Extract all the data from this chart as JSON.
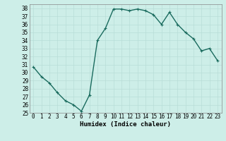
{
  "x": [
    0,
    1,
    2,
    3,
    4,
    5,
    6,
    7,
    8,
    9,
    10,
    11,
    12,
    13,
    14,
    15,
    16,
    17,
    18,
    19,
    20,
    21,
    22,
    23
  ],
  "y": [
    30.7,
    29.5,
    28.7,
    27.5,
    26.5,
    26.0,
    25.2,
    27.2,
    34.0,
    35.5,
    37.9,
    37.9,
    37.7,
    37.9,
    37.7,
    37.2,
    36.0,
    37.5,
    36.0,
    35.0,
    34.2,
    32.7,
    33.0,
    31.5
  ],
  "line_color": "#1a6b5e",
  "bg_color": "#cdeee8",
  "grid_color": "#b8ddd7",
  "xlabel": "Humidex (Indice chaleur)",
  "ylim": [
    25,
    38.5
  ],
  "xlim": [
    -0.5,
    23.5
  ],
  "yticks": [
    25,
    26,
    27,
    28,
    29,
    30,
    31,
    32,
    33,
    34,
    35,
    36,
    37,
    38
  ],
  "xticks": [
    0,
    1,
    2,
    3,
    4,
    5,
    6,
    7,
    8,
    9,
    10,
    11,
    12,
    13,
    14,
    15,
    16,
    17,
    18,
    19,
    20,
    21,
    22,
    23
  ],
  "xtick_labels": [
    "0",
    "1",
    "2",
    "3",
    "4",
    "5",
    "6",
    "7",
    "8",
    "9",
    "10",
    "11",
    "12",
    "13",
    "14",
    "15",
    "16",
    "17",
    "18",
    "19",
    "20",
    "21",
    "22",
    "23"
  ],
  "marker": "+",
  "markersize": 3,
  "linewidth": 1.0,
  "tick_fontsize": 5.5,
  "xlabel_fontsize": 6.5
}
